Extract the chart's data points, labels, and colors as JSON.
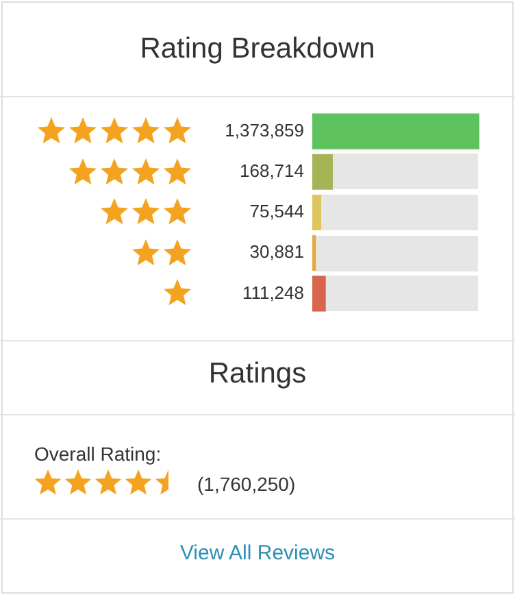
{
  "chart_data": {
    "type": "bar",
    "orientation": "horizontal",
    "title": "Rating Breakdown",
    "categories": [
      null,
      null,
      null,
      null,
      null
    ],
    "values": [
      1373859,
      168714,
      75544,
      30881,
      111248
    ],
    "colors": [
      "#5ec35e",
      "#a6b455",
      "#ddc65e",
      "#e5a94a",
      "#d8654d"
    ],
    "value_labels": [
      "1,373,859",
      "168,714",
      "75,544",
      "30,881",
      "111,248"
    ],
    "legend": false,
    "annotations": [
      "Ratings",
      "Overall Rating:",
      "(1,760,250)",
      "View All Reviews"
    ]
  }
}
